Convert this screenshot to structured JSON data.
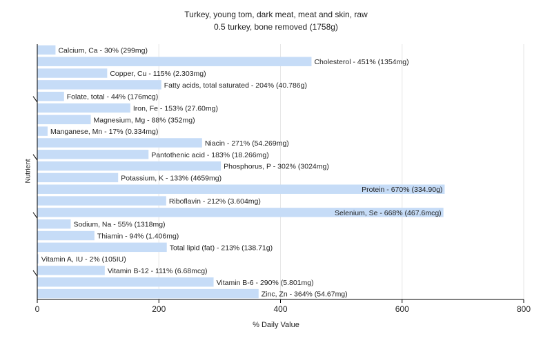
{
  "chart_data": {
    "type": "bar",
    "orientation": "horizontal",
    "title": "Turkey, young tom, dark meat, meat and skin, raw",
    "subtitle": "0.5 turkey, bone removed (1758g)",
    "xlabel": "% Daily Value",
    "ylabel": "Nutrient",
    "xlim": [
      0,
      800
    ],
    "xticks": [
      0,
      200,
      400,
      600,
      800
    ],
    "grid": true,
    "bar_color": "#c6dcf7",
    "categories": [
      "Calcium, Ca",
      "Cholesterol",
      "Copper, Cu",
      "Fatty acids, total saturated",
      "Folate, total",
      "Iron, Fe",
      "Magnesium, Mg",
      "Manganese, Mn",
      "Niacin",
      "Pantothenic acid",
      "Phosphorus, P",
      "Potassium, K",
      "Protein",
      "Riboflavin",
      "Selenium, Se",
      "Sodium, Na",
      "Thiamin",
      "Total lipid (fat)",
      "Vitamin A, IU",
      "Vitamin B-12",
      "Vitamin B-6",
      "Zinc, Zn"
    ],
    "values": [
      30,
      451,
      115,
      204,
      44,
      153,
      88,
      17,
      271,
      183,
      302,
      133,
      670,
      212,
      668,
      55,
      94,
      213,
      2,
      111,
      290,
      364
    ],
    "labels": [
      "Calcium, Ca - 30% (299mg)",
      "Cholesterol - 451% (1354mg)",
      "Copper, Cu - 115% (2.303mg)",
      "Fatty acids, total saturated - 204% (40.786g)",
      "Folate, total - 44% (176mcg)",
      "Iron, Fe - 153% (27.60mg)",
      "Magnesium, Mg - 88% (352mg)",
      "Manganese, Mn - 17% (0.334mg)",
      "Niacin - 271% (54.269mg)",
      "Pantothenic acid - 183% (18.266mg)",
      "Phosphorus, P - 302% (3024mg)",
      "Potassium, K - 133% (4659mg)",
      "Protein - 670% (334.90g)",
      "Riboflavin - 212% (3.604mg)",
      "Selenium, Se - 668% (467.6mcg)",
      "Sodium, Na - 55% (1318mg)",
      "Thiamin - 94% (1.406mg)",
      "Total lipid (fat) - 213% (138.71g)",
      "Vitamin A, IU - 2% (105IU)",
      "Vitamin B-12 - 111% (6.68mcg)",
      "Vitamin B-6 - 290% (5.801mg)",
      "Zinc, Zn - 364% (54.67mg)"
    ]
  }
}
